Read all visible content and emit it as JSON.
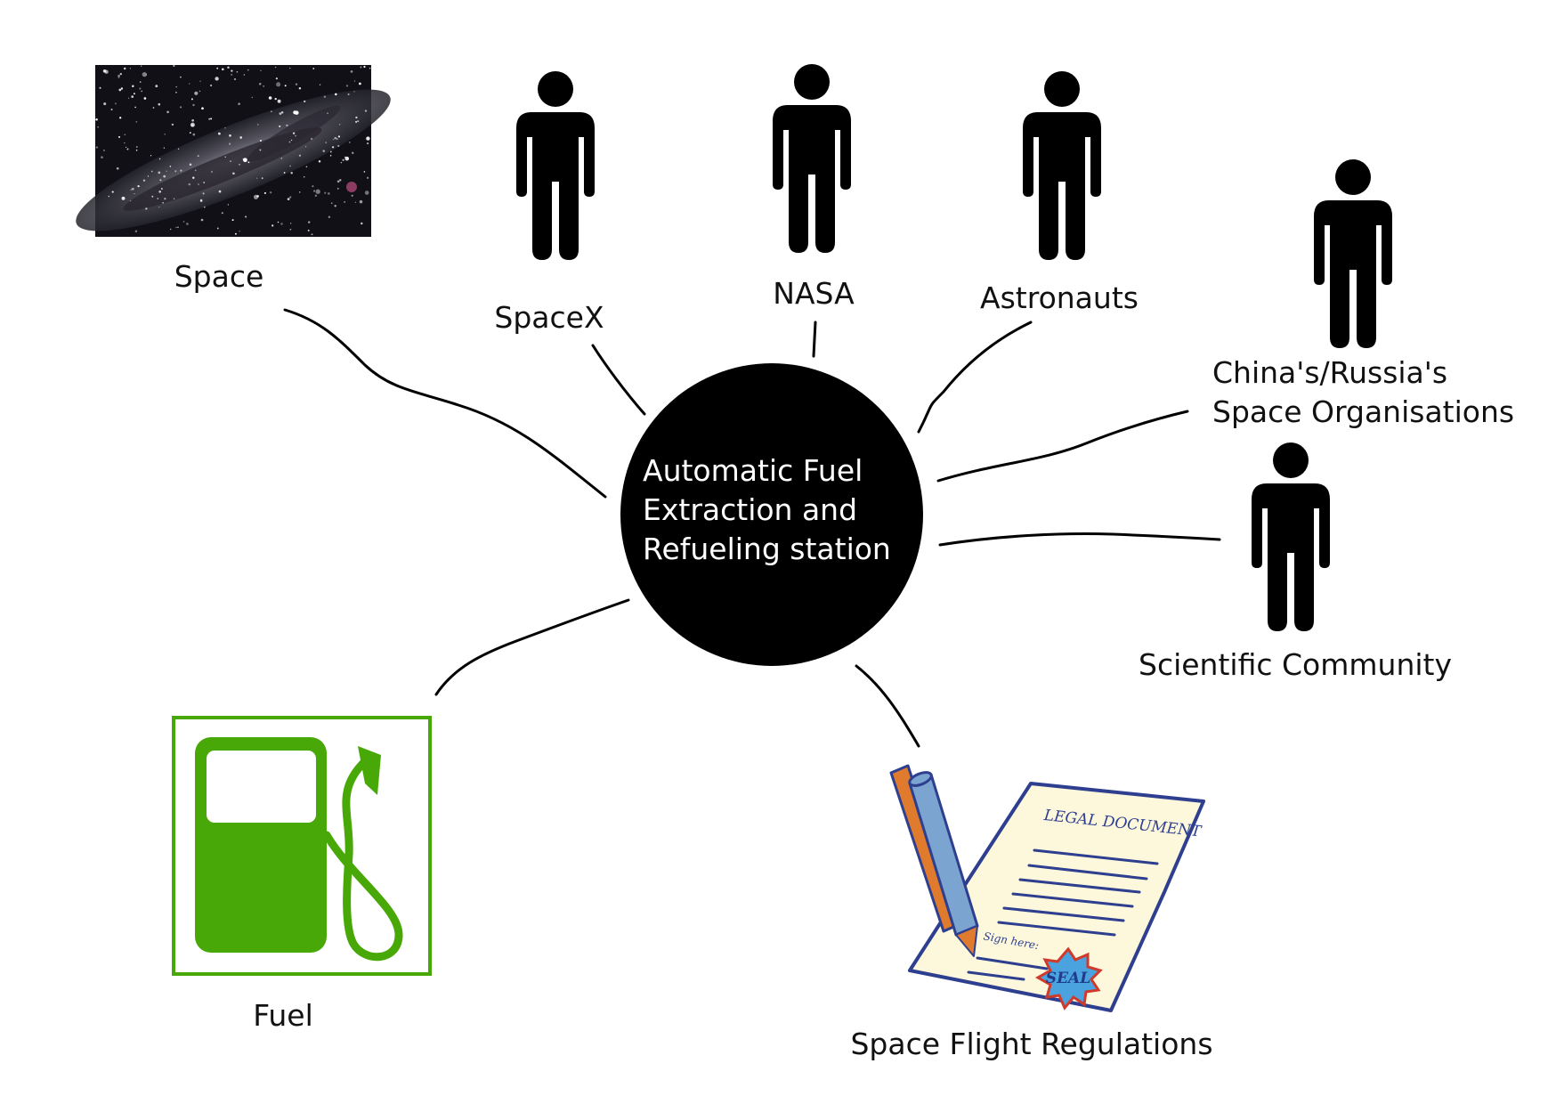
{
  "hub": {
    "lines": [
      "Automatic Fuel",
      "Extraction and",
      "Refueling station"
    ]
  },
  "nodes": {
    "space": {
      "label": "Space",
      "icon": "starfield-image"
    },
    "spacex": {
      "label": "SpaceX",
      "icon": "person-icon"
    },
    "nasa": {
      "label": "NASA",
      "icon": "person-icon"
    },
    "astronauts": {
      "label": "Astronauts",
      "icon": "person-icon"
    },
    "china_russia": {
      "lines": [
        "China's/Russia's",
        "Space Organisations"
      ],
      "icon": "person-icon"
    },
    "scientific": {
      "label": "Scientific Community",
      "icon": "person-icon"
    },
    "fuel": {
      "label": "Fuel",
      "icon": "fuel-pump-icon"
    },
    "regulations": {
      "label": "Space Flight Regulations",
      "icon": "legal-document-icon"
    }
  },
  "document": {
    "heading": "LEGAL DOCUMENT",
    "sign_here": "Sign here:",
    "seal": "SEAL"
  },
  "colors": {
    "hub": "#000000",
    "person": "#000000",
    "fuel": "#48a808",
    "paper": "#fdf8dc",
    "ink": "#2e3f8f",
    "pen_body": "#7ba4d0",
    "pen_accent": "#e07b2d",
    "seal": "#4aa3df"
  }
}
